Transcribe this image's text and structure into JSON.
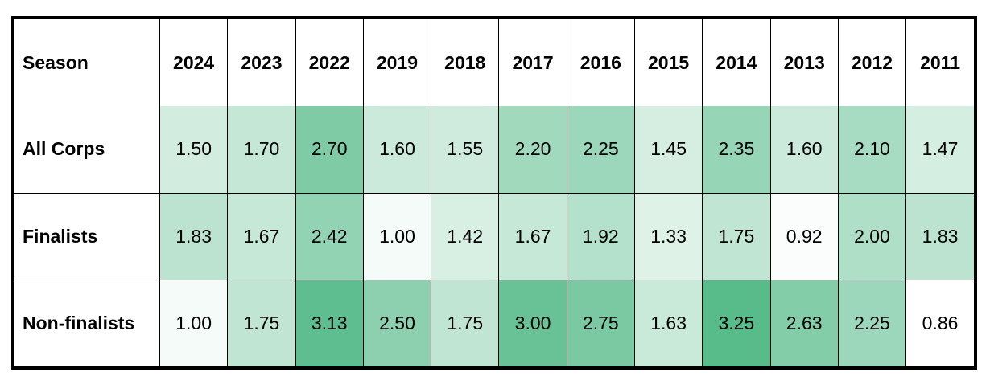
{
  "chart_data": {
    "type": "heatmap",
    "corner_label": "Season",
    "columns": [
      "2024",
      "2023",
      "2022",
      "2019",
      "2018",
      "2017",
      "2016",
      "2015",
      "2014",
      "2013",
      "2012",
      "2011"
    ],
    "rows": [
      {
        "label": "All Corps",
        "values": [
          "1.50",
          "1.70",
          "2.70",
          "1.60",
          "1.55",
          "2.20",
          "2.25",
          "1.45",
          "2.35",
          "1.60",
          "2.10",
          "1.47"
        ]
      },
      {
        "label": "Finalists",
        "values": [
          "1.83",
          "1.67",
          "2.42",
          "1.00",
          "1.42",
          "1.67",
          "1.92",
          "1.33",
          "1.75",
          "0.92",
          "2.00",
          "1.83"
        ]
      },
      {
        "label": "Non-finalists",
        "values": [
          "1.00",
          "1.75",
          "3.13",
          "2.50",
          "1.75",
          "3.00",
          "2.75",
          "1.63",
          "3.25",
          "2.63",
          "2.25",
          "0.86"
        ]
      }
    ],
    "color_scale": {
      "min": 0.86,
      "max": 3.25,
      "low_color": "#ffffff",
      "high_color": "#57bb8a"
    }
  }
}
